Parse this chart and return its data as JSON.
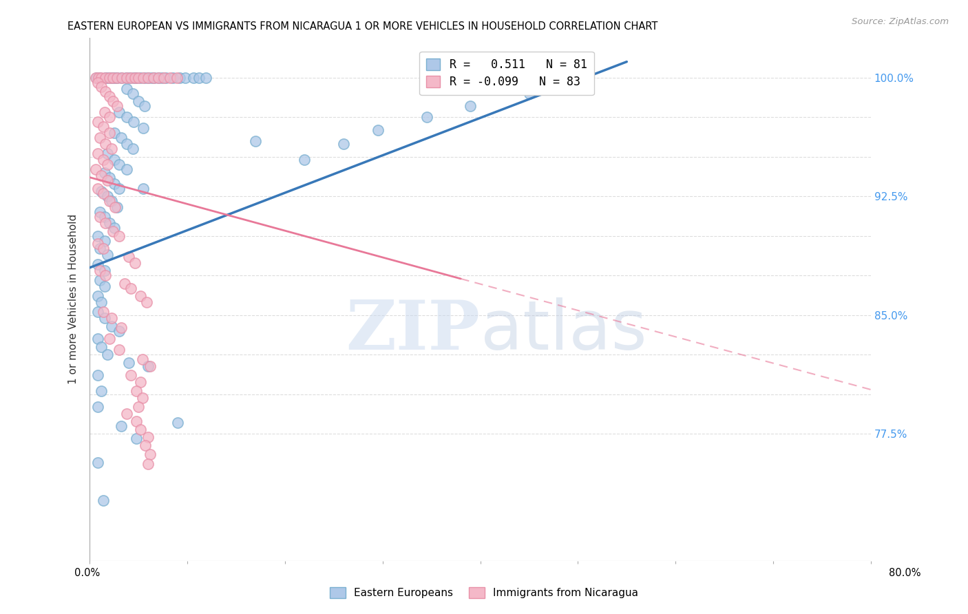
{
  "title": "EASTERN EUROPEAN VS IMMIGRANTS FROM NICARAGUA 1 OR MORE VEHICLES IN HOUSEHOLD CORRELATION CHART",
  "source": "Source: ZipAtlas.com",
  "ylabel": "1 or more Vehicles in Household",
  "yticks": [
    0.775,
    0.8,
    0.825,
    0.85,
    0.875,
    0.9,
    0.925,
    0.95,
    0.975,
    1.0
  ],
  "ytick_labels": [
    "77.5%",
    "",
    "",
    "85.0%",
    "",
    "",
    "92.5%",
    "",
    "",
    "100.0%"
  ],
  "xlim": [
    0.0,
    0.8
  ],
  "ylim": [
    0.695,
    1.025
  ],
  "watermark_zip": "ZIP",
  "watermark_atlas": "atlas",
  "blue_line": {
    "x0": 0.0,
    "y0": 0.88,
    "x1": 0.55,
    "y1": 1.01
  },
  "pink_line_solid": {
    "x0": 0.0,
    "y0": 0.937,
    "x1": 0.38,
    "y1": 0.873
  },
  "pink_line_dash": {
    "x0": 0.38,
    "y0": 0.873,
    "x1": 0.8,
    "y1": 0.803
  },
  "blue_scatter": [
    [
      0.007,
      1.0
    ],
    [
      0.01,
      1.0
    ],
    [
      0.016,
      1.0
    ],
    [
      0.019,
      1.0
    ],
    [
      0.022,
      1.0
    ],
    [
      0.025,
      1.0
    ],
    [
      0.028,
      1.0
    ],
    [
      0.032,
      1.0
    ],
    [
      0.037,
      1.0
    ],
    [
      0.041,
      1.0
    ],
    [
      0.045,
      1.0
    ],
    [
      0.048,
      1.0
    ],
    [
      0.052,
      1.0
    ],
    [
      0.056,
      1.0
    ],
    [
      0.06,
      1.0
    ],
    [
      0.063,
      1.0
    ],
    [
      0.066,
      1.0
    ],
    [
      0.07,
      1.0
    ],
    [
      0.074,
      1.0
    ],
    [
      0.078,
      1.0
    ],
    [
      0.085,
      1.0
    ],
    [
      0.092,
      1.0
    ],
    [
      0.098,
      1.0
    ],
    [
      0.106,
      1.0
    ],
    [
      0.112,
      1.0
    ],
    [
      0.119,
      1.0
    ],
    [
      0.038,
      0.993
    ],
    [
      0.044,
      0.99
    ],
    [
      0.05,
      0.985
    ],
    [
      0.056,
      0.982
    ],
    [
      0.03,
      0.978
    ],
    [
      0.038,
      0.975
    ],
    [
      0.045,
      0.972
    ],
    [
      0.055,
      0.968
    ],
    [
      0.025,
      0.965
    ],
    [
      0.032,
      0.962
    ],
    [
      0.038,
      0.958
    ],
    [
      0.044,
      0.955
    ],
    [
      0.018,
      0.952
    ],
    [
      0.025,
      0.948
    ],
    [
      0.03,
      0.945
    ],
    [
      0.038,
      0.942
    ],
    [
      0.015,
      0.94
    ],
    [
      0.02,
      0.937
    ],
    [
      0.025,
      0.933
    ],
    [
      0.03,
      0.93
    ],
    [
      0.012,
      0.928
    ],
    [
      0.018,
      0.925
    ],
    [
      0.022,
      0.922
    ],
    [
      0.028,
      0.918
    ],
    [
      0.01,
      0.915
    ],
    [
      0.015,
      0.912
    ],
    [
      0.02,
      0.908
    ],
    [
      0.025,
      0.905
    ],
    [
      0.008,
      0.9
    ],
    [
      0.015,
      0.897
    ],
    [
      0.01,
      0.892
    ],
    [
      0.018,
      0.888
    ],
    [
      0.008,
      0.882
    ],
    [
      0.015,
      0.878
    ],
    [
      0.01,
      0.872
    ],
    [
      0.015,
      0.868
    ],
    [
      0.008,
      0.862
    ],
    [
      0.012,
      0.858
    ],
    [
      0.008,
      0.852
    ],
    [
      0.015,
      0.848
    ],
    [
      0.022,
      0.843
    ],
    [
      0.03,
      0.84
    ],
    [
      0.008,
      0.835
    ],
    [
      0.012,
      0.83
    ],
    [
      0.018,
      0.825
    ],
    [
      0.04,
      0.82
    ],
    [
      0.008,
      0.812
    ],
    [
      0.012,
      0.802
    ],
    [
      0.008,
      0.792
    ],
    [
      0.06,
      0.818
    ],
    [
      0.055,
      0.93
    ],
    [
      0.17,
      0.96
    ],
    [
      0.22,
      0.948
    ],
    [
      0.26,
      0.958
    ],
    [
      0.295,
      0.967
    ],
    [
      0.345,
      0.975
    ],
    [
      0.39,
      0.982
    ],
    [
      0.45,
      0.99
    ],
    [
      0.51,
      0.995
    ],
    [
      0.008,
      0.757
    ],
    [
      0.014,
      0.733
    ],
    [
      0.032,
      0.78
    ],
    [
      0.048,
      0.772
    ],
    [
      0.09,
      0.782
    ]
  ],
  "pink_scatter": [
    [
      0.006,
      1.0
    ],
    [
      0.009,
      1.0
    ],
    [
      0.012,
      1.0
    ],
    [
      0.016,
      1.0
    ],
    [
      0.02,
      1.0
    ],
    [
      0.024,
      1.0
    ],
    [
      0.028,
      1.0
    ],
    [
      0.033,
      1.0
    ],
    [
      0.038,
      1.0
    ],
    [
      0.042,
      1.0
    ],
    [
      0.046,
      1.0
    ],
    [
      0.05,
      1.0
    ],
    [
      0.055,
      1.0
    ],
    [
      0.06,
      1.0
    ],
    [
      0.065,
      1.0
    ],
    [
      0.07,
      1.0
    ],
    [
      0.076,
      1.0
    ],
    [
      0.082,
      1.0
    ],
    [
      0.089,
      1.0
    ],
    [
      0.008,
      0.997
    ],
    [
      0.012,
      0.994
    ],
    [
      0.016,
      0.991
    ],
    [
      0.02,
      0.988
    ],
    [
      0.024,
      0.985
    ],
    [
      0.028,
      0.982
    ],
    [
      0.015,
      0.978
    ],
    [
      0.02,
      0.975
    ],
    [
      0.008,
      0.972
    ],
    [
      0.014,
      0.969
    ],
    [
      0.02,
      0.965
    ],
    [
      0.01,
      0.962
    ],
    [
      0.016,
      0.958
    ],
    [
      0.022,
      0.955
    ],
    [
      0.008,
      0.952
    ],
    [
      0.014,
      0.948
    ],
    [
      0.018,
      0.945
    ],
    [
      0.006,
      0.942
    ],
    [
      0.012,
      0.938
    ],
    [
      0.018,
      0.935
    ],
    [
      0.008,
      0.93
    ],
    [
      0.014,
      0.927
    ],
    [
      0.02,
      0.922
    ],
    [
      0.026,
      0.918
    ],
    [
      0.01,
      0.912
    ],
    [
      0.016,
      0.908
    ],
    [
      0.024,
      0.903
    ],
    [
      0.03,
      0.9
    ],
    [
      0.008,
      0.895
    ],
    [
      0.014,
      0.892
    ],
    [
      0.04,
      0.887
    ],
    [
      0.046,
      0.883
    ],
    [
      0.01,
      0.878
    ],
    [
      0.016,
      0.875
    ],
    [
      0.036,
      0.87
    ],
    [
      0.042,
      0.867
    ],
    [
      0.052,
      0.862
    ],
    [
      0.058,
      0.858
    ],
    [
      0.014,
      0.852
    ],
    [
      0.022,
      0.848
    ],
    [
      0.032,
      0.842
    ],
    [
      0.02,
      0.835
    ],
    [
      0.03,
      0.828
    ],
    [
      0.054,
      0.822
    ],
    [
      0.062,
      0.818
    ],
    [
      0.042,
      0.812
    ],
    [
      0.052,
      0.808
    ],
    [
      0.048,
      0.802
    ],
    [
      0.054,
      0.798
    ],
    [
      0.05,
      0.792
    ],
    [
      0.038,
      0.788
    ],
    [
      0.048,
      0.783
    ],
    [
      0.052,
      0.778
    ],
    [
      0.06,
      0.773
    ],
    [
      0.057,
      0.768
    ],
    [
      0.062,
      0.762
    ],
    [
      0.06,
      0.756
    ]
  ],
  "blue_color": "#aec8e8",
  "pink_color": "#f4b8c8",
  "blue_edge_color": "#7aafd0",
  "pink_edge_color": "#e890a8",
  "blue_line_color": "#3878b8",
  "pink_line_color": "#e87898",
  "grid_color": "#dddddd",
  "background_color": "#ffffff"
}
